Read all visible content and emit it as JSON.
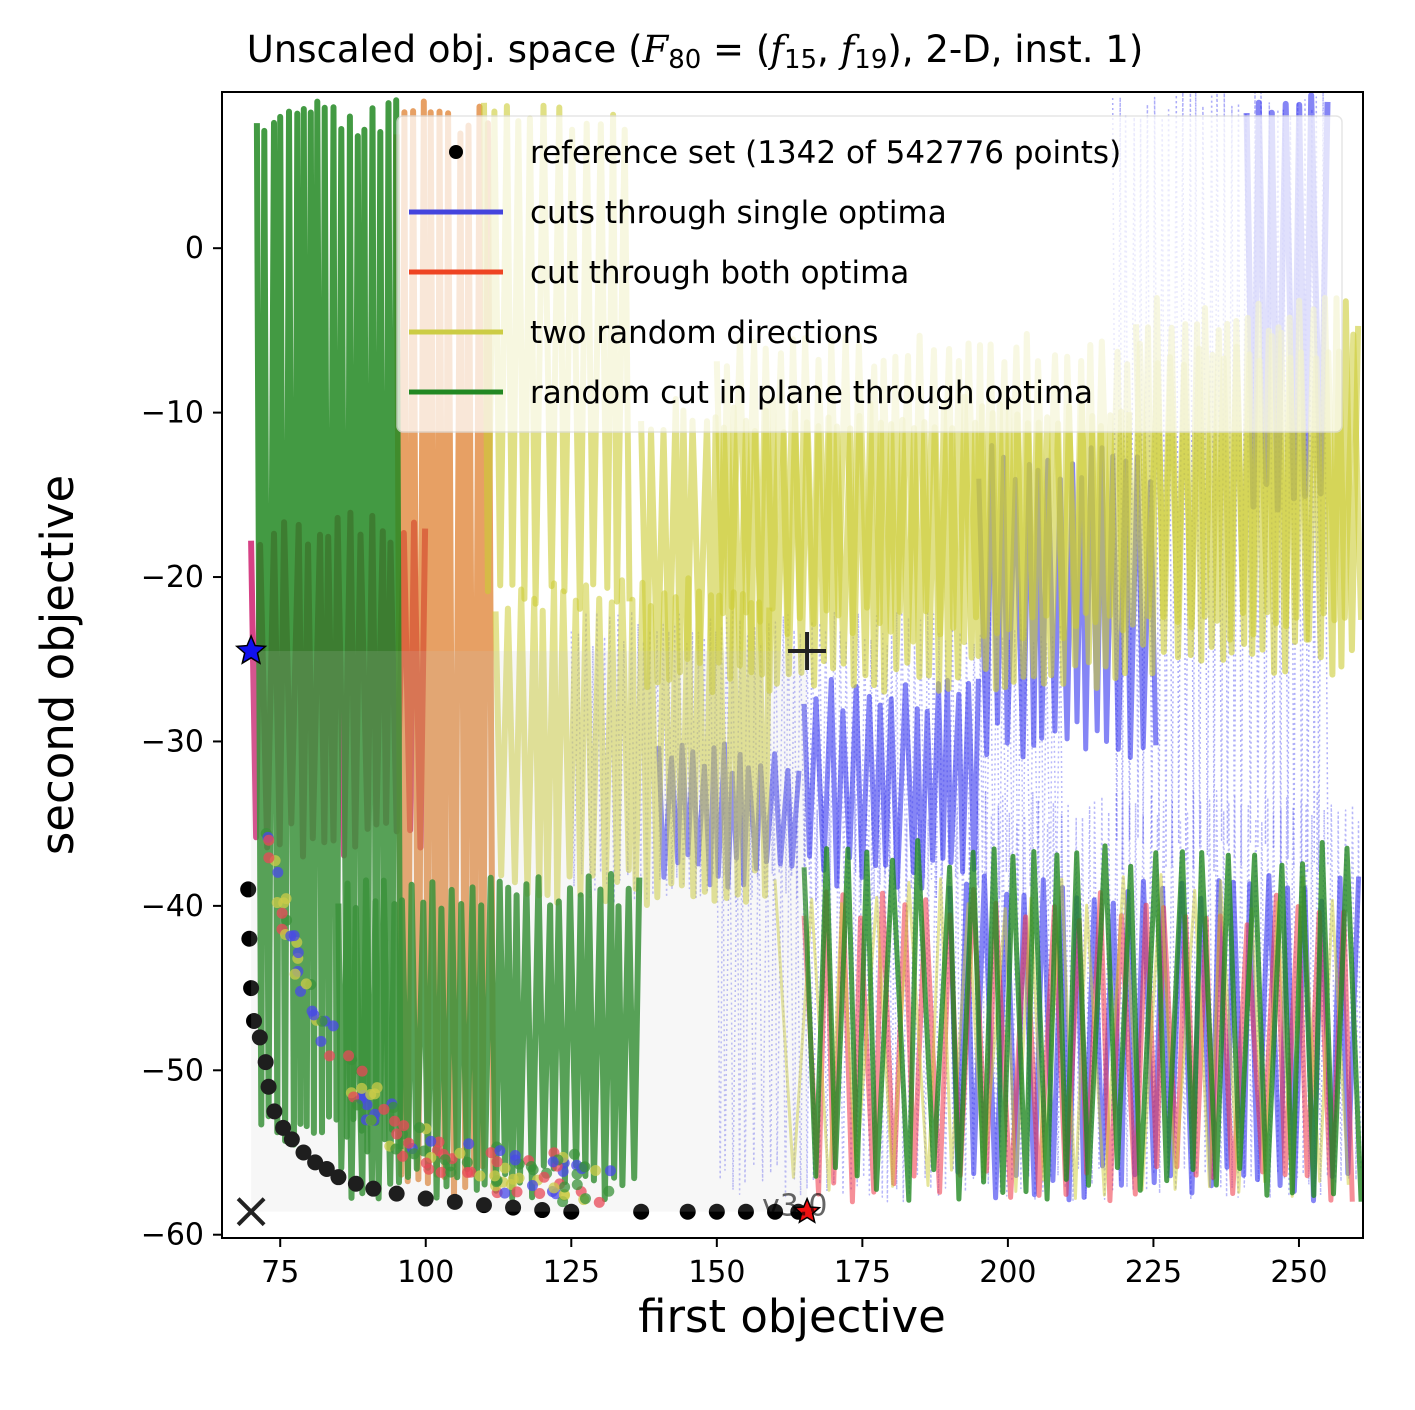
{
  "chart_data": {
    "type": "scatter",
    "title": {
      "prefix": "Unscaled obj. space (",
      "F": "F",
      "F_sub": "80",
      "eq": " = (",
      "f": "f",
      "f1_sub": "15",
      "f2_sub": "19",
      "suffix": "), 2-D, inst. 1)"
    },
    "xlabel": "first objective",
    "ylabel": "second objective",
    "xlim": [
      65,
      261
    ],
    "ylim": [
      -60.2,
      9.5
    ],
    "xticks": [
      75,
      100,
      125,
      150,
      175,
      200,
      225,
      250
    ],
    "yticks": [
      -60,
      -50,
      -40,
      -30,
      -20,
      -10,
      0
    ],
    "grid": false,
    "legend_placement": "top-right",
    "legend": [
      {
        "label": "reference set (1342 of 542776 points)",
        "kind": "dot",
        "color": "#000000"
      },
      {
        "label": "cuts through single optima",
        "kind": "line",
        "color": "#4444dd"
      },
      {
        "label": "cut through both optima",
        "kind": "line",
        "color": "#ee4422"
      },
      {
        "label": "two random directions",
        "kind": "line",
        "color": "#cccc44"
      },
      {
        "label": "random cut in plane through optima",
        "kind": "line",
        "color": "#228822"
      }
    ],
    "colors": {
      "single": "#3333ee",
      "both": "#ee3344",
      "random": "#cccc33",
      "plane": "#228822",
      "orange": "#dd7722",
      "magenta": "#cc1166",
      "reference": "#000000"
    },
    "reference_set": [
      [
        69.5,
        -39
      ],
      [
        69.7,
        -42
      ],
      [
        70,
        -45
      ],
      [
        70.5,
        -47
      ],
      [
        71.5,
        -48
      ],
      [
        72.5,
        -49.5
      ],
      [
        73,
        -51
      ],
      [
        74,
        -52.5
      ],
      [
        75.5,
        -53.5
      ],
      [
        77,
        -54.2
      ],
      [
        79,
        -55
      ],
      [
        81,
        -55.6
      ],
      [
        83,
        -56
      ],
      [
        85,
        -56.5
      ],
      [
        88,
        -56.9
      ],
      [
        91,
        -57.2
      ],
      [
        95,
        -57.5
      ],
      [
        100,
        -57.8
      ],
      [
        105,
        -58
      ],
      [
        110,
        -58.2
      ],
      [
        115,
        -58.35
      ],
      [
        120,
        -58.5
      ],
      [
        125,
        -58.6
      ],
      [
        137,
        -58.6
      ],
      [
        145,
        -58.6
      ],
      [
        150,
        -58.6
      ],
      [
        155,
        -58.6
      ],
      [
        160,
        -58.6
      ],
      [
        164,
        -58.6
      ]
    ],
    "optimum_1": [
      70,
      -24.5
    ],
    "optimum_2": [
      165.5,
      -58.6
    ],
    "ideal_point": [
      70,
      -58.6
    ],
    "nadir_point": [
      165.5,
      -24.5
    ],
    "watermark": "v3.0"
  }
}
